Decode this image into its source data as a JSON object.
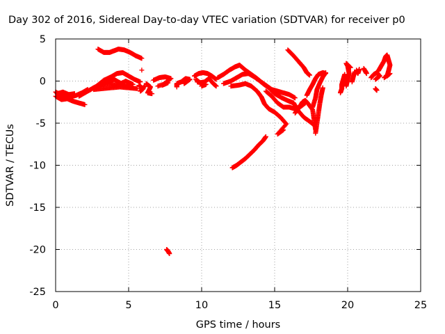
{
  "chart_data": {
    "type": "scatter",
    "title": "Day 302 of 2016, Sidereal Day-to-day VTEC variation (SDTVAR) for receiver p0",
    "xlabel": "GPS time / hours",
    "ylabel": "SDTVAR / TECUs",
    "xlim": [
      0,
      25
    ],
    "ylim": [
      -25,
      5
    ],
    "xticks": [
      0,
      5,
      10,
      15,
      20,
      25
    ],
    "yticks": [
      -25,
      -20,
      -15,
      -10,
      -5,
      0,
      5
    ],
    "grid": true,
    "marker": "plus",
    "color": "#ff0000",
    "series_segments": [
      [
        [
          0.0,
          -1.3
        ],
        [
          0.3,
          -1.6
        ],
        [
          0.6,
          -1.9
        ],
        [
          1.0,
          -1.9
        ],
        [
          1.4,
          -1.7
        ],
        [
          1.8,
          -1.4
        ],
        [
          2.2,
          -1.0
        ]
      ],
      [
        [
          0.0,
          -1.8
        ],
        [
          0.4,
          -2.2
        ],
        [
          0.8,
          -2.1
        ],
        [
          1.2,
          -2.4
        ],
        [
          1.6,
          -2.6
        ],
        [
          2.0,
          -2.8
        ]
      ],
      [
        [
          0.1,
          -1.5
        ],
        [
          0.5,
          -1.3
        ],
        [
          0.9,
          -1.6
        ],
        [
          1.3,
          -1.5
        ]
      ],
      [
        [
          1.6,
          -1.8
        ],
        [
          2.1,
          -1.3
        ],
        [
          2.6,
          -0.8
        ],
        [
          3.1,
          -0.4
        ],
        [
          3.6,
          -0.1
        ],
        [
          4.0,
          0.2
        ],
        [
          4.4,
          -0.2
        ],
        [
          4.8,
          -0.6
        ],
        [
          5.2,
          -0.8
        ]
      ],
      [
        [
          2.2,
          -1.2
        ],
        [
          2.8,
          -0.6
        ],
        [
          3.3,
          0.1
        ],
        [
          3.8,
          0.5
        ],
        [
          4.2,
          0.9
        ],
        [
          4.6,
          1.0
        ],
        [
          5.0,
          0.6
        ],
        [
          5.4,
          0.2
        ],
        [
          5.8,
          -0.1
        ]
      ],
      [
        [
          2.6,
          -1.0
        ],
        [
          3.2,
          -0.9
        ],
        [
          3.8,
          -0.8
        ],
        [
          4.4,
          -0.7
        ],
        [
          5.0,
          -0.8
        ],
        [
          5.6,
          -0.9
        ]
      ],
      [
        [
          3.0,
          -0.5
        ],
        [
          3.6,
          -0.3
        ],
        [
          4.2,
          -0.5
        ],
        [
          4.8,
          0.0
        ],
        [
          5.3,
          -0.4
        ]
      ],
      [
        [
          2.9,
          3.8
        ],
        [
          3.3,
          3.4
        ],
        [
          3.7,
          3.4
        ],
        [
          4.0,
          3.6
        ],
        [
          4.3,
          3.8
        ],
        [
          4.7,
          3.7
        ],
        [
          5.1,
          3.4
        ],
        [
          5.5,
          3.0
        ],
        [
          5.9,
          2.7
        ]
      ],
      [
        [
          5.9,
          1.3
        ]
      ],
      [
        [
          5.7,
          -0.5
        ],
        [
          6.0,
          -0.9
        ],
        [
          5.8,
          -1.2
        ],
        [
          6.1,
          -0.6
        ]
      ],
      [
        [
          6.2,
          -0.3
        ],
        [
          6.5,
          -0.7
        ],
        [
          6.3,
          -1.4
        ],
        [
          6.6,
          -1.5
        ]
      ],
      [
        [
          6.7,
          0.1
        ],
        [
          7.1,
          0.4
        ],
        [
          7.5,
          0.5
        ],
        [
          7.9,
          0.3
        ],
        [
          7.3,
          -0.5
        ],
        [
          7.7,
          -0.2
        ],
        [
          7.0,
          -0.6
        ]
      ],
      [
        [
          7.6,
          -20.0
        ],
        [
          7.7,
          -20.2
        ],
        [
          7.8,
          -20.5
        ]
      ],
      [
        [
          8.3,
          -0.7
        ],
        [
          8.3,
          -0.3
        ],
        [
          8.6,
          -0.1
        ],
        [
          8.9,
          0.3
        ],
        [
          9.2,
          0.2
        ],
        [
          8.8,
          -0.3
        ]
      ],
      [
        [
          9.5,
          0.6
        ],
        [
          9.8,
          0.9
        ],
        [
          10.1,
          1.0
        ],
        [
          10.4,
          0.9
        ],
        [
          10.7,
          0.6
        ],
        [
          11.0,
          0.2
        ]
      ],
      [
        [
          9.6,
          0.2
        ],
        [
          9.9,
          -0.2
        ],
        [
          10.2,
          -0.1
        ],
        [
          10.5,
          0.3
        ],
        [
          10.8,
          -0.3
        ],
        [
          11.0,
          -0.6
        ]
      ],
      [
        [
          10.0,
          -0.6
        ],
        [
          10.3,
          -0.4
        ],
        [
          9.7,
          -0.1
        ]
      ],
      [
        [
          11.1,
          0.4
        ],
        [
          11.5,
          0.8
        ],
        [
          11.9,
          1.3
        ],
        [
          12.3,
          1.7
        ],
        [
          12.6,
          1.9
        ],
        [
          13.0,
          1.3
        ],
        [
          13.4,
          0.8
        ],
        [
          13.8,
          0.3
        ],
        [
          14.2,
          -0.3
        ],
        [
          14.6,
          -0.8
        ],
        [
          15.0,
          -1.5
        ],
        [
          15.5,
          -2.0
        ],
        [
          16.0,
          -2.4
        ],
        [
          16.3,
          -2.6
        ],
        [
          16.6,
          -3.5
        ],
        [
          17.0,
          -4.3
        ],
        [
          17.4,
          -4.8
        ],
        [
          17.7,
          -5.2
        ]
      ],
      [
        [
          11.5,
          -0.3
        ],
        [
          12.0,
          0.0
        ],
        [
          12.4,
          0.4
        ],
        [
          12.8,
          0.8
        ],
        [
          13.2,
          0.9
        ],
        [
          13.6,
          0.5
        ],
        [
          14.0,
          0.0
        ],
        [
          14.4,
          -0.5
        ],
        [
          14.8,
          -1.0
        ],
        [
          15.2,
          -1.2
        ],
        [
          15.6,
          -1.4
        ],
        [
          16.0,
          -1.6
        ],
        [
          16.4,
          -2.0
        ]
      ],
      [
        [
          12.0,
          -0.6
        ],
        [
          12.5,
          -0.5
        ],
        [
          13.0,
          -0.3
        ],
        [
          13.4,
          -0.6
        ],
        [
          13.8,
          -1.2
        ],
        [
          14.1,
          -1.9
        ],
        [
          14.3,
          -2.7
        ],
        [
          14.6,
          -3.3
        ],
        [
          15.0,
          -3.7
        ],
        [
          15.4,
          -4.3
        ],
        [
          15.8,
          -5.1
        ],
        [
          15.2,
          -6.3
        ],
        [
          15.6,
          -5.8
        ]
      ],
      [
        [
          14.4,
          -1.2
        ],
        [
          14.8,
          -1.8
        ],
        [
          15.2,
          -2.6
        ],
        [
          15.6,
          -3.1
        ],
        [
          16.0,
          -3.1
        ],
        [
          16.4,
          -3.3
        ],
        [
          16.8,
          -3.0
        ],
        [
          17.1,
          -2.6
        ]
      ],
      [
        [
          12.1,
          -10.3
        ],
        [
          12.4,
          -10.0
        ],
        [
          12.7,
          -9.6
        ],
        [
          13.0,
          -9.2
        ],
        [
          13.3,
          -8.7
        ],
        [
          13.6,
          -8.2
        ],
        [
          13.9,
          -7.6
        ],
        [
          14.2,
          -7.1
        ],
        [
          14.4,
          -6.6
        ]
      ],
      [
        [
          15.9,
          3.7
        ],
        [
          16.3,
          3.0
        ],
        [
          16.7,
          2.2
        ],
        [
          17.0,
          1.6
        ],
        [
          17.2,
          1.0
        ],
        [
          17.4,
          0.7
        ]
      ],
      [
        [
          16.4,
          -3.8
        ],
        [
          16.7,
          -3.1
        ],
        [
          16.9,
          -2.5
        ],
        [
          17.1,
          -2.3
        ],
        [
          17.3,
          -2.7
        ],
        [
          17.6,
          -3.4
        ],
        [
          17.7,
          -4.6
        ],
        [
          17.8,
          -5.8
        ]
      ],
      [
        [
          17.2,
          -1.7
        ],
        [
          17.4,
          -1.0
        ],
        [
          17.6,
          -0.4
        ],
        [
          17.8,
          0.3
        ],
        [
          18.0,
          0.8
        ],
        [
          18.3,
          1.0
        ],
        [
          18.5,
          0.9
        ]
      ],
      [
        [
          17.6,
          -3.1
        ],
        [
          17.8,
          -2.0
        ],
        [
          17.9,
          -1.0
        ],
        [
          18.1,
          -0.2
        ],
        [
          18.3,
          0.5
        ],
        [
          18.5,
          1.0
        ]
      ],
      [
        [
          17.8,
          -6.2
        ],
        [
          17.9,
          -5.0
        ],
        [
          18.0,
          -3.8
        ],
        [
          18.1,
          -2.6
        ],
        [
          18.2,
          -1.6
        ],
        [
          18.3,
          -0.8
        ]
      ],
      [
        [
          19.5,
          -1.4
        ],
        [
          19.6,
          -0.9
        ],
        [
          19.6,
          -0.4
        ],
        [
          19.7,
          0.2
        ],
        [
          19.8,
          0.8
        ]
      ],
      [
        [
          19.9,
          -0.6
        ],
        [
          20.0,
          0.2
        ],
        [
          20.1,
          0.9
        ],
        [
          20.0,
          1.8
        ],
        [
          19.9,
          2.1
        ],
        [
          20.2,
          1.6
        ]
      ],
      [
        [
          20.3,
          -0.1
        ],
        [
          20.4,
          0.6
        ],
        [
          20.5,
          1.1
        ]
      ],
      [
        [
          20.6,
          1.3
        ],
        [
          20.7,
          0.9
        ],
        [
          20.8,
          1.4
        ]
      ],
      [
        [
          21.1,
          1.5
        ],
        [
          21.3,
          0.9
        ],
        [
          21.2,
          1.2
        ]
      ],
      [
        [
          21.6,
          0.4
        ],
        [
          21.8,
          0.8
        ],
        [
          22.0,
          1.0
        ],
        [
          22.2,
          0.6
        ],
        [
          21.9,
          0.2
        ]
      ],
      [
        [
          21.9,
          -0.9
        ],
        [
          22.0,
          -1.1
        ]
      ],
      [
        [
          22.1,
          1.2
        ],
        [
          22.3,
          1.8
        ],
        [
          22.5,
          2.4
        ],
        [
          22.6,
          2.9
        ],
        [
          22.7,
          3.1
        ],
        [
          22.8,
          2.5
        ],
        [
          22.9,
          1.9
        ],
        [
          22.8,
          1.2
        ],
        [
          22.7,
          0.6
        ],
        [
          22.9,
          0.9
        ],
        [
          22.5,
          0.4
        ]
      ]
    ]
  }
}
